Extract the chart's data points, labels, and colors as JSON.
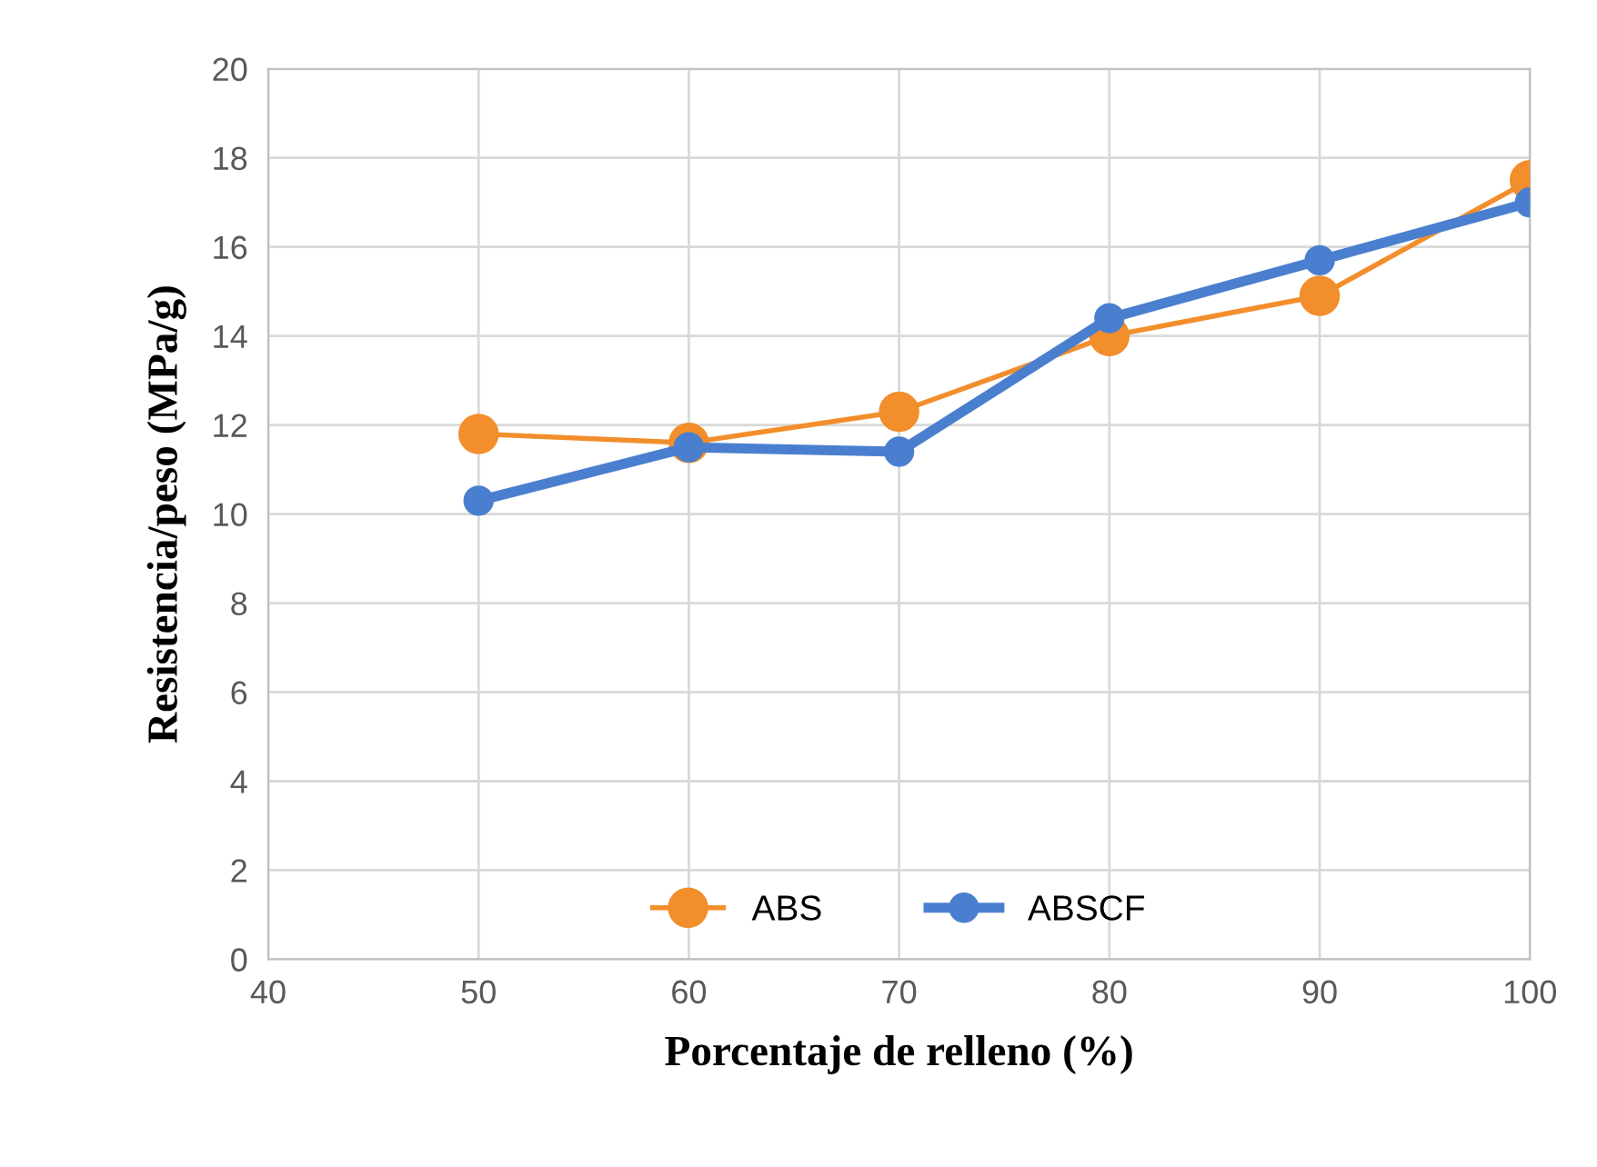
{
  "chart_data": {
    "type": "line",
    "xlabel": "Porcentaje de relleno (%)",
    "ylabel": "Resistencia/peso (MPa/g)",
    "x": [
      50,
      60,
      70,
      80,
      90,
      100
    ],
    "series": [
      {
        "name": "ABS",
        "color": "#f28e2b",
        "values": [
          11.8,
          11.6,
          12.3,
          14.0,
          14.9,
          17.5
        ]
      },
      {
        "name": "ABSCF",
        "color": "#4a7fcf",
        "values": [
          10.3,
          11.5,
          11.4,
          14.4,
          15.7,
          17.0
        ]
      }
    ],
    "xlim": [
      40,
      100
    ],
    "xticks": [
      40,
      50,
      60,
      70,
      80,
      90,
      100
    ],
    "ylim": [
      0,
      20
    ],
    "yticks": [
      0,
      2,
      4,
      6,
      8,
      10,
      12,
      14,
      16,
      18,
      20
    ],
    "grid": true,
    "legend": "bottom",
    "marker": "circle",
    "line_style": "solid"
  }
}
